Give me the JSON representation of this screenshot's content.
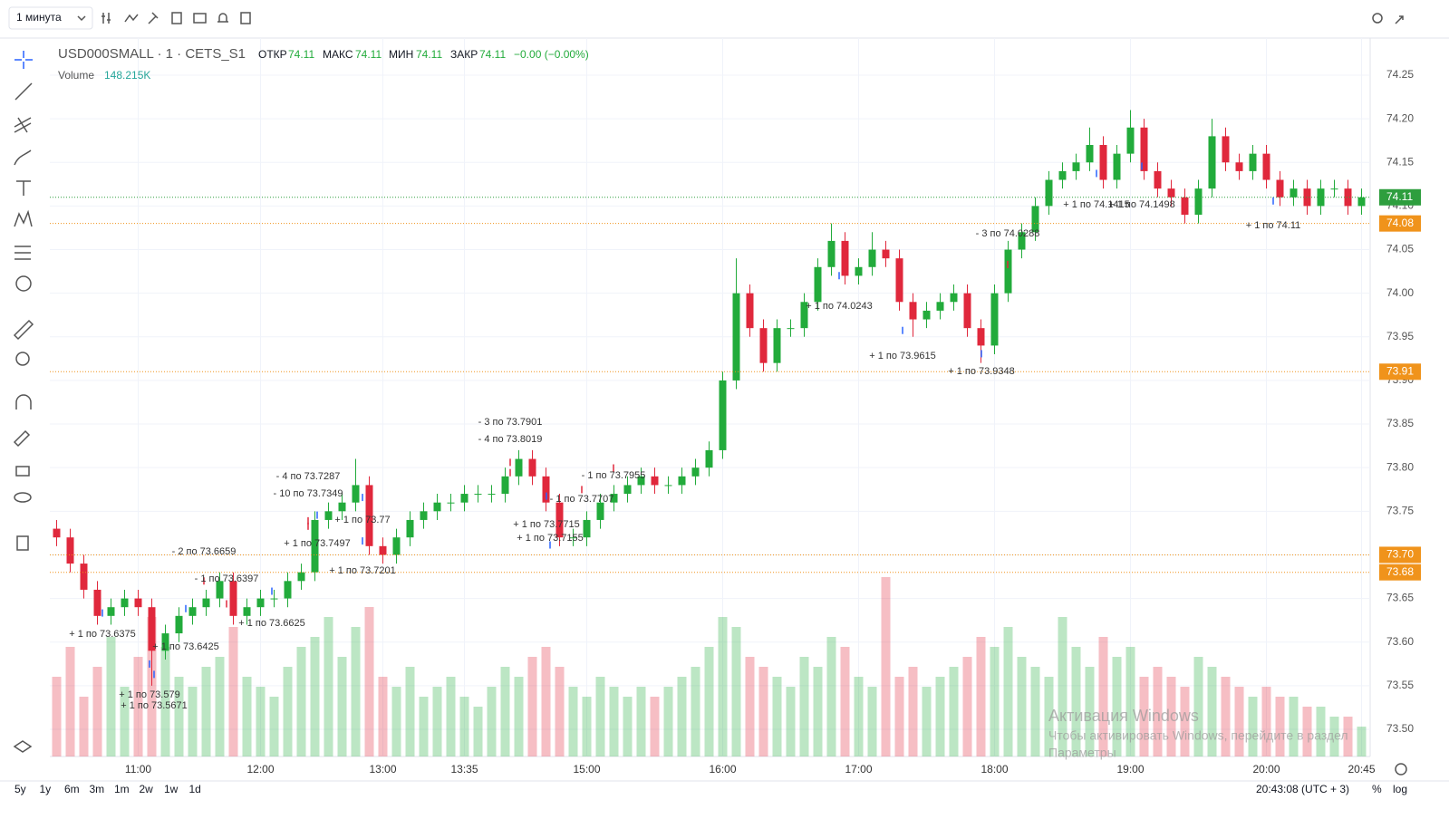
{
  "toolbar": {
    "interval": "1 минута"
  },
  "legend": {
    "symbol": "USD000SMALL · 1 · CETS_S1",
    "open_label": "ОТКР",
    "open": "74.11",
    "high_label": "МАКС",
    "high": "74.11",
    "low_label": "МИН",
    "low": "74.11",
    "close_label": "ЗАКР",
    "close": "74.11",
    "change": "−0.00 (−0.00%)",
    "volume_label": "Volume",
    "volume": "148.215K"
  },
  "chart_data": {
    "type": "candlestick",
    "categories": [
      null,
      null,
      null,
      null,
      null,
      null,
      "11:00",
      null,
      null,
      null,
      null,
      null,
      null,
      null,
      null,
      "12:00",
      null,
      null,
      null,
      null,
      null,
      null,
      null,
      null,
      "13:00",
      null,
      null,
      null,
      null,
      null,
      "13:35",
      null,
      null,
      null,
      null,
      null,
      null,
      null,
      null,
      "15:00",
      null,
      null,
      null,
      null,
      null,
      null,
      null,
      null,
      null,
      "16:00",
      null,
      null,
      null,
      null,
      null,
      null,
      null,
      null,
      null,
      "17:00",
      null,
      null,
      null,
      null,
      null,
      null,
      null,
      null,
      null,
      "18:00",
      null,
      null,
      null,
      null,
      null,
      null,
      null,
      null,
      null,
      "19:00",
      null,
      null,
      null,
      null,
      null,
      null,
      null,
      null,
      null,
      "20:00",
      null,
      null,
      null,
      null,
      null,
      null,
      "20:45"
    ],
    "open": [
      73.73,
      73.72,
      73.69,
      73.66,
      73.63,
      73.64,
      73.65,
      73.64,
      73.59,
      73.61,
      73.63,
      73.64,
      73.65,
      73.67,
      73.63,
      73.64,
      73.65,
      73.65,
      73.67,
      73.68,
      73.74,
      73.75,
      73.76,
      73.78,
      73.71,
      73.7,
      73.72,
      73.74,
      73.75,
      73.76,
      73.76,
      73.77,
      73.77,
      73.77,
      73.79,
      73.81,
      73.79,
      73.76,
      73.72,
      73.72,
      73.74,
      73.76,
      73.77,
      73.78,
      73.79,
      73.78,
      73.78,
      73.79,
      73.8,
      73.82,
      73.9,
      74.0,
      73.96,
      73.92,
      73.96,
      73.96,
      73.99,
      74.03,
      74.06,
      74.02,
      74.03,
      74.05,
      74.04,
      73.99,
      73.97,
      73.98,
      73.99,
      74.0,
      73.96,
      73.94,
      74.0,
      74.05,
      74.07,
      74.1,
      74.13,
      74.14,
      74.15,
      74.17,
      74.13,
      74.16,
      74.19,
      74.14,
      74.12,
      74.11,
      74.09,
      74.12,
      74.18,
      74.15,
      74.14,
      74.16,
      74.13,
      74.11,
      74.12,
      74.1,
      74.12,
      74.12,
      74.1
    ],
    "high": [
      73.74,
      73.73,
      73.7,
      73.67,
      73.65,
      73.66,
      73.66,
      73.65,
      73.62,
      73.64,
      73.65,
      73.66,
      73.68,
      73.68,
      73.65,
      73.66,
      73.66,
      73.68,
      73.69,
      73.75,
      73.76,
      73.77,
      73.81,
      73.79,
      73.72,
      73.73,
      73.75,
      73.76,
      73.77,
      73.77,
      73.78,
      73.78,
      73.78,
      73.8,
      73.82,
      73.82,
      73.8,
      73.77,
      73.73,
      73.75,
      73.77,
      73.78,
      73.79,
      73.8,
      73.8,
      73.79,
      73.8,
      73.81,
      73.83,
      73.91,
      74.04,
      74.01,
      73.97,
      73.97,
      73.97,
      74.0,
      74.04,
      74.08,
      74.07,
      74.04,
      74.07,
      74.06,
      74.05,
      74.0,
      73.99,
      74.0,
      74.01,
      74.01,
      73.97,
      74.01,
      74.06,
      74.08,
      74.11,
      74.14,
      74.15,
      74.16,
      74.19,
      74.18,
      74.17,
      74.21,
      74.2,
      74.15,
      74.13,
      74.12,
      74.13,
      74.2,
      74.19,
      74.16,
      74.17,
      74.17,
      74.14,
      74.13,
      74.13,
      74.13,
      74.13,
      74.13,
      74.12
    ],
    "low": [
      73.71,
      73.68,
      73.65,
      73.62,
      73.62,
      73.63,
      73.63,
      73.55,
      73.58,
      73.6,
      73.62,
      73.63,
      73.64,
      73.62,
      73.62,
      73.63,
      73.64,
      73.64,
      73.66,
      73.67,
      73.73,
      73.74,
      73.75,
      73.7,
      73.69,
      73.69,
      73.71,
      73.73,
      73.74,
      73.75,
      73.75,
      73.76,
      73.76,
      73.76,
      73.78,
      73.78,
      73.75,
      73.71,
      73.71,
      73.71,
      73.73,
      73.75,
      73.76,
      73.77,
      73.77,
      73.77,
      73.77,
      73.78,
      73.79,
      73.81,
      73.89,
      73.95,
      73.91,
      73.91,
      73.95,
      73.95,
      73.98,
      74.02,
      74.01,
      74.01,
      74.02,
      74.03,
      73.98,
      73.95,
      73.96,
      73.97,
      73.98,
      73.95,
      73.92,
      73.93,
      73.99,
      74.04,
      74.06,
      74.09,
      74.12,
      74.13,
      74.14,
      74.12,
      74.12,
      74.15,
      74.13,
      74.11,
      74.1,
      74.08,
      74.08,
      74.11,
      74.14,
      74.13,
      74.13,
      74.12,
      74.1,
      74.1,
      74.09,
      74.09,
      74.11,
      74.09,
      74.09
    ],
    "close": [
      73.72,
      73.69,
      73.66,
      73.63,
      73.64,
      73.65,
      73.64,
      73.59,
      73.61,
      73.63,
      73.64,
      73.65,
      73.67,
      73.63,
      73.64,
      73.65,
      73.65,
      73.67,
      73.68,
      73.74,
      73.75,
      73.76,
      73.78,
      73.71,
      73.7,
      73.72,
      73.74,
      73.75,
      73.76,
      73.76,
      73.77,
      73.77,
      73.77,
      73.79,
      73.81,
      73.79,
      73.76,
      73.72,
      73.72,
      73.74,
      73.76,
      73.77,
      73.78,
      73.79,
      73.78,
      73.78,
      73.79,
      73.8,
      73.82,
      73.9,
      74.0,
      73.96,
      73.92,
      73.96,
      73.96,
      73.99,
      74.03,
      74.06,
      74.02,
      74.03,
      74.05,
      74.04,
      73.99,
      73.97,
      73.98,
      73.99,
      74.0,
      73.96,
      73.94,
      74.0,
      74.05,
      74.07,
      74.1,
      74.13,
      74.14,
      74.15,
      74.17,
      74.13,
      74.16,
      74.19,
      74.14,
      74.12,
      74.11,
      74.09,
      74.12,
      74.18,
      74.15,
      74.14,
      74.16,
      74.13,
      74.11,
      74.12,
      74.1,
      74.12,
      74.12,
      74.1,
      74.11
    ],
    "volume": [
      40,
      55,
      30,
      45,
      60,
      35,
      50,
      70,
      55,
      40,
      35,
      45,
      50,
      65,
      40,
      35,
      30,
      45,
      55,
      60,
      70,
      50,
      65,
      75,
      40,
      35,
      45,
      30,
      35,
      40,
      30,
      25,
      35,
      45,
      40,
      50,
      55,
      45,
      35,
      30,
      40,
      35,
      30,
      35,
      30,
      35,
      40,
      45,
      55,
      70,
      65,
      50,
      45,
      40,
      35,
      50,
      45,
      60,
      55,
      40,
      35,
      90,
      40,
      45,
      35,
      40,
      45,
      50,
      60,
      55,
      65,
      50,
      45,
      40,
      70,
      55,
      45,
      60,
      50,
      55,
      40,
      45,
      40,
      35,
      50,
      45,
      40,
      35,
      30,
      35,
      30,
      30,
      25,
      25,
      20,
      20,
      15
    ],
    "up_color": "#22ab3b",
    "down_color": "#e0283c",
    "ylim": [
      73.4688,
      74.2926
    ],
    "yticks": [
      {
        "value": 73.5,
        "label": "73.50"
      },
      73.55,
      {
        "value": 73.6,
        "label": "73.60"
      },
      73.65,
      {
        "value": 73.7,
        "label": "73.70"
      },
      73.75,
      {
        "value": 73.8,
        "label": "73.80"
      },
      73.85,
      {
        "value": 73.9,
        "label": "73.90"
      },
      73.95,
      {
        "value": 74.0,
        "label": "74.00"
      },
      74.05,
      {
        "value": 74.1,
        "label": "74.10"
      },
      74.15,
      {
        "value": 74.2,
        "label": "74.20"
      },
      74.25
    ],
    "vlim": [
      0,
      100
    ],
    "grid": true,
    "price_lines": [
      {
        "value": 74.11,
        "color": "#2e9e3e"
      },
      {
        "value": 74.08,
        "color": "#f0931b"
      },
      {
        "value": 73.91,
        "color": "#f0931b"
      },
      {
        "value": 73.7,
        "label": "73.70",
        "color": "#f0931b"
      },
      {
        "value": 73.68,
        "color": "#f0931b"
      }
    ],
    "annotations": [
      {
        "text": "+ 1 по 73.6375",
        "price": 73.6375
      },
      {
        "text": "+ 1 по 73.6425",
        "price": 73.6425
      },
      {
        "text": "+ 1 по 73.579",
        "price": 73.579
      },
      {
        "text": "+ 1 по 73.5671",
        "price": 73.5671
      },
      {
        "text": "- 2 по 73.6659",
        "price": 73.6659
      },
      {
        "text": "- 1 по 73.6397",
        "price": 73.6397
      },
      {
        "text": "+ 1 по 73.6625",
        "price": 73.6625
      },
      {
        "text": "- 10 по 73.7349",
        "price": 73.7349
      },
      {
        "text": "- 4 по 73.7287",
        "price": 73.7287
      },
      {
        "text": "+ 1 по 73.7497",
        "price": 73.7497
      },
      {
        "text": "+ 1 по 73.7201",
        "price": 73.7201
      },
      {
        "text": "+ 1 по 73.77",
        "price": 73.77
      },
      {
        "text": "- 3 по 73.7901",
        "price": 73.7901
      },
      {
        "text": "- 4 по 73.8019",
        "price": 73.8019
      },
      {
        "text": "+ 1 по 73.7715",
        "price": 73.7715
      },
      {
        "text": "+ 1 по 73.7155",
        "price": 73.7155
      },
      {
        "text": "- 1 по 73.7707",
        "price": 73.7707
      },
      {
        "text": "- 1 по 73.7955",
        "price": 73.7955
      },
      {
        "text": "+ 1 по 74.0243",
        "price": 74.0243
      },
      {
        "text": "+ 1 по 73.9615",
        "price": 73.9615
      },
      {
        "text": "+ 1 по 73.9348",
        "price": 73.9348
      },
      {
        "text": "- 3 по 74.0288",
        "price": 74.0288
      },
      {
        "text": "+ 1 по 74.1415",
        "price": 74.1415
      },
      {
        "text": "+ 1 по 74.1498",
        "price": 74.1498
      },
      {
        "text": "+ 1 по 74.11",
        "price": 74.11
      }
    ]
  },
  "footer": {
    "ranges": [
      "5y",
      "1y",
      "6m",
      "3m",
      "1m",
      "2w",
      "1w",
      "1d"
    ],
    "clock": "20:43:08 (UTC + 3)",
    "percent": "%",
    "log": "log"
  },
  "watermark": {
    "title": "Активация Windows",
    "line1": "Чтобы активировать Windows, перейдите в раздел",
    "line2": "Параметры"
  }
}
